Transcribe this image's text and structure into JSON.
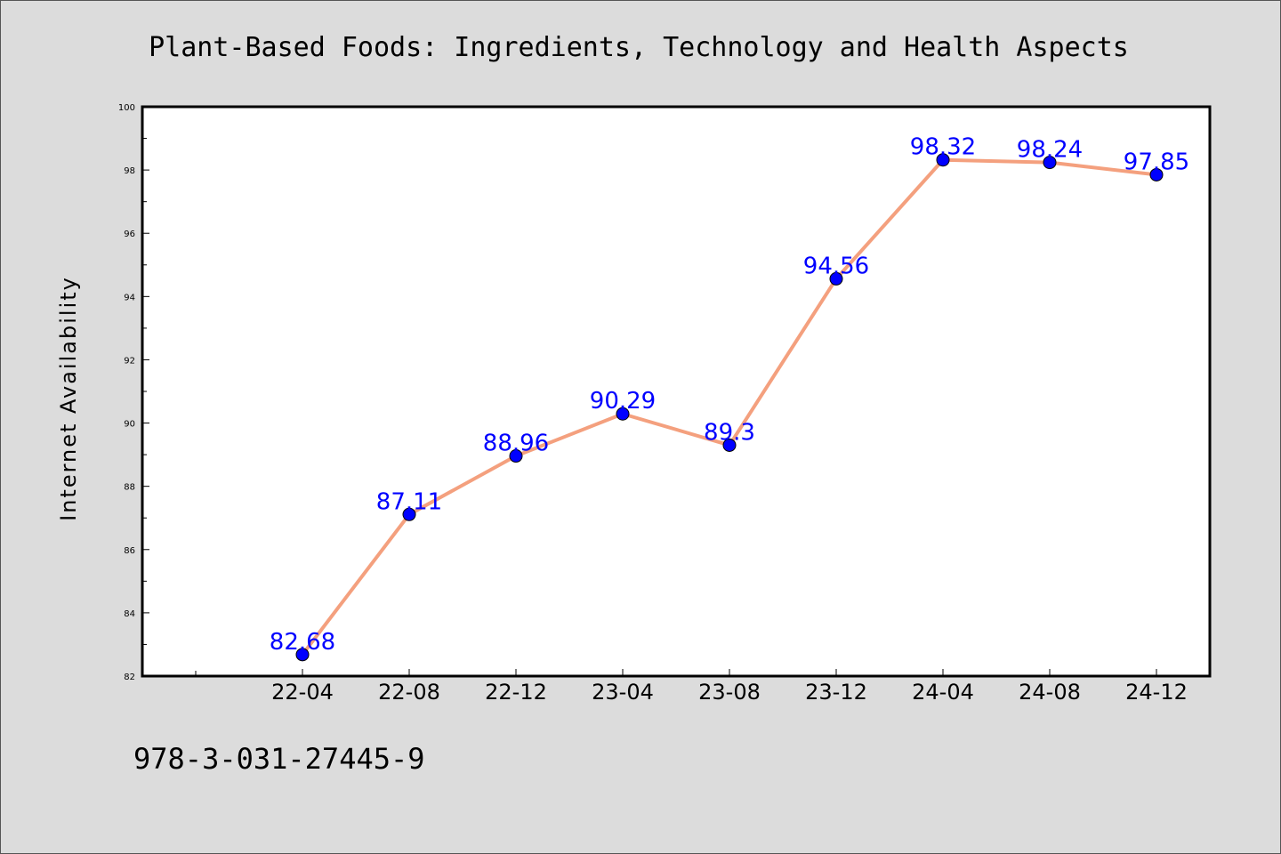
{
  "chart_data": {
    "type": "line",
    "title": "Plant-Based Foods: Ingredients, Technology and Health Aspects",
    "xlabel": "",
    "ylabel": "Internet Availability",
    "categories": [
      "22-04",
      "22-08",
      "22-12",
      "23-04",
      "23-08",
      "23-12",
      "24-04",
      "24-08",
      "24-12"
    ],
    "series": [
      {
        "values": [
          82.68,
          87.11,
          88.96,
          90.29,
          89.3,
          94.56,
          98.32,
          98.24,
          97.85
        ],
        "data_labels": [
          "82.68",
          "87.11",
          "88.96",
          "90.29",
          "89.3",
          "94.56",
          "98.32",
          "98.24",
          "97.85"
        ]
      }
    ],
    "ylim": [
      82,
      100
    ],
    "yticks": [
      "82",
      "84",
      "86",
      "88",
      "90",
      "92",
      "94",
      "96",
      "98",
      "100"
    ],
    "grid": false,
    "colors": {
      "line": "#f4a07e",
      "marker": "#0000ff",
      "data_label": "#0000ff",
      "background": "#dcdcdc",
      "plot_background": "#ffffff"
    }
  },
  "footer": "978-3-031-27445-9"
}
